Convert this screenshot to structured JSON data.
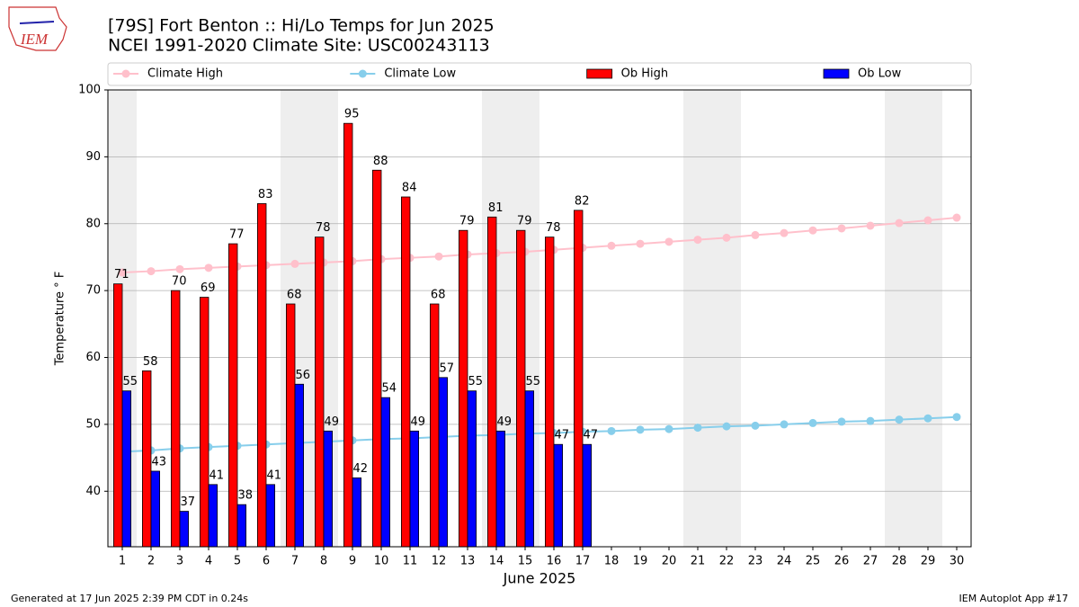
{
  "logo": "IEM",
  "footer_left": "Generated at 17 Jun 2025 2:39 PM CDT in 0.24s",
  "footer_right": "IEM Autoplot App #17",
  "chart_data": {
    "type": "bar_line",
    "title": "[79S] Fort Benton :: Hi/Lo Temps for Jun 2025",
    "subtitle": "NCEI 1991-2020 Climate Site: USC00243113",
    "x_label": "June 2025",
    "y_label": "Temperature ° F",
    "x": [
      1,
      2,
      3,
      4,
      5,
      6,
      7,
      8,
      9,
      10,
      11,
      12,
      13,
      14,
      15,
      16,
      17,
      18,
      19,
      20,
      21,
      22,
      23,
      24,
      25,
      26,
      27,
      28,
      29,
      30
    ],
    "xlim": [
      0.5,
      30.5
    ],
    "xticks": [
      1,
      2,
      3,
      4,
      5,
      6,
      7,
      8,
      9,
      10,
      11,
      12,
      13,
      14,
      15,
      16,
      17,
      18,
      19,
      20,
      21,
      22,
      23,
      24,
      25,
      26,
      27,
      28,
      29,
      30
    ],
    "ylim": [
      31.7,
      100
    ],
    "yticks": [
      40,
      50,
      60,
      70,
      80,
      90,
      100
    ],
    "grid": true,
    "highlight_days": [
      1,
      7,
      8,
      14,
      15,
      21,
      22,
      28,
      29
    ],
    "highlight_color": "#eeeeee",
    "legend": "top",
    "series": [
      {
        "name": "Climate High",
        "type": "line",
        "color": "pink",
        "values": [
          72.7,
          72.9,
          73.2,
          73.4,
          73.6,
          73.8,
          74.0,
          74.2,
          74.4,
          74.7,
          74.9,
          75.1,
          75.4,
          75.6,
          75.8,
          76.1,
          76.4,
          76.7,
          77.0,
          77.3,
          77.6,
          77.9,
          78.3,
          78.6,
          79.0,
          79.3,
          79.7,
          80.1,
          80.5,
          80.9
        ]
      },
      {
        "name": "Climate Low",
        "type": "line",
        "color": "skyblue",
        "values": [
          45.9,
          46.1,
          46.4,
          46.6,
          46.8,
          47.0,
          47.2,
          47.4,
          47.6,
          47.8,
          47.9,
          48.1,
          48.3,
          48.4,
          48.6,
          48.7,
          48.9,
          49.0,
          49.2,
          49.3,
          49.5,
          49.7,
          49.8,
          50.0,
          50.2,
          50.4,
          50.5,
          50.7,
          50.9,
          51.1
        ]
      },
      {
        "name": "Ob High",
        "type": "bar",
        "color": "red",
        "values": [
          71,
          58,
          70,
          69,
          77,
          83,
          68,
          78,
          95,
          88,
          84,
          68,
          79,
          81,
          79,
          78,
          82,
          null,
          null,
          null,
          null,
          null,
          null,
          null,
          null,
          null,
          null,
          null,
          null,
          null
        ]
      },
      {
        "name": "Ob Low",
        "type": "bar",
        "color": "blue",
        "values": [
          55,
          43,
          37,
          41,
          38,
          41,
          56,
          49,
          42,
          54,
          49,
          57,
          55,
          49,
          55,
          47,
          47,
          null,
          null,
          null,
          null,
          null,
          null,
          null,
          null,
          null,
          null,
          null,
          null,
          null
        ]
      }
    ]
  }
}
